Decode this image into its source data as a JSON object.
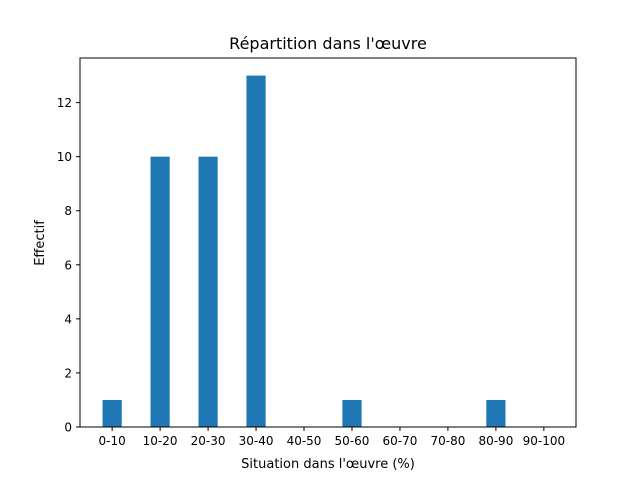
{
  "chart_data": {
    "type": "bar",
    "title": "Répartition dans l'œuvre",
    "xlabel": "Situation dans l'œuvre (%)",
    "ylabel": "Effectif",
    "categories": [
      "0-10",
      "10-20",
      "20-30",
      "30-40",
      "40-50",
      "50-60",
      "60-70",
      "70-80",
      "80-90",
      "90-100"
    ],
    "values": [
      1,
      10,
      10,
      13,
      0,
      1,
      0,
      0,
      1,
      0
    ],
    "ylim": [
      0,
      13.65
    ],
    "yticks": [
      0,
      2,
      4,
      6,
      8,
      10,
      12
    ],
    "grid": false,
    "bar_color": "#1f77b4"
  }
}
